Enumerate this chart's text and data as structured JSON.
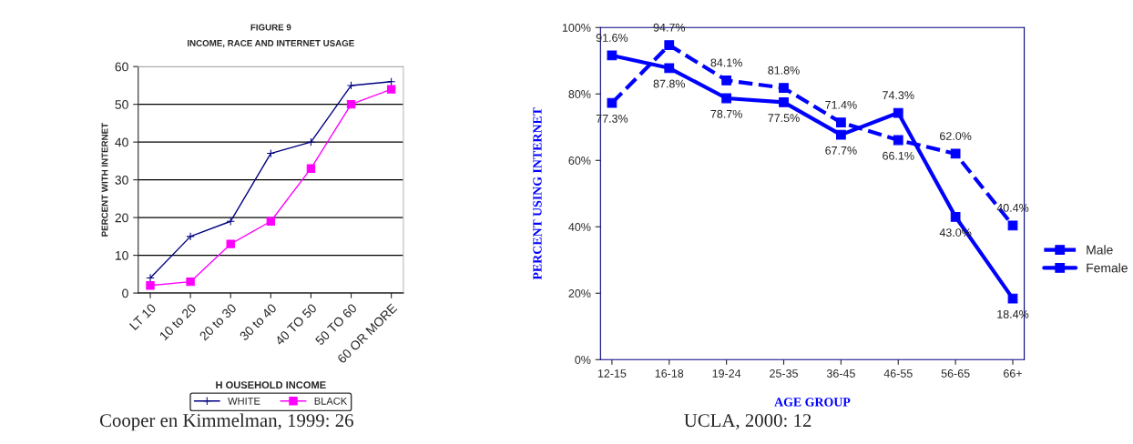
{
  "chart_data": [
    {
      "type": "line",
      "title": "FIGURE 9",
      "subtitle": "INCOME, RACE AND INTERNET USAGE",
      "xlabel": "H OUSEHOLD INCOME",
      "ylabel": "PERCENT WITH INTERNET",
      "categories": [
        "LT 10",
        "10 to 20",
        "20 to 30",
        "30 to 40",
        "40 TO 50",
        "50 TO 60",
        "60 OR MORE"
      ],
      "series": [
        {
          "name": "WHITE",
          "color": "#000080",
          "marker": "cross",
          "values": [
            4,
            15,
            19,
            37,
            40,
            55,
            56
          ]
        },
        {
          "name": "BLACK",
          "color": "#ff00ff",
          "marker": "square",
          "values": [
            2,
            3,
            13,
            19,
            33,
            50,
            54
          ]
        }
      ],
      "ylim": [
        0,
        60
      ],
      "yticks": [
        0,
        10,
        20,
        30,
        40,
        50,
        60
      ],
      "grid": "y",
      "legend": "bottom",
      "annotations": [
        "Cooper en Kimmelman, 1999: 26"
      ]
    },
    {
      "type": "line",
      "xlabel": "AGE GROUP",
      "ylabel": "PERCENT USING INTERNET",
      "categories": [
        "12-15",
        "16-18",
        "19-24",
        "25-35",
        "36-45",
        "46-55",
        "56-65",
        "66+"
      ],
      "series": [
        {
          "name": "Male",
          "color": "#0000ff",
          "marker": "square",
          "line_style": "dashed",
          "values": [
            77.3,
            94.7,
            84.1,
            81.8,
            71.4,
            66.1,
            62.0,
            40.4
          ],
          "value_labels": [
            "77.3%",
            "94.7%",
            "84.1%",
            "81.8%",
            "71.4%",
            "66.1%",
            "62.0%",
            "40.4%"
          ]
        },
        {
          "name": "Female",
          "color": "#0000ff",
          "marker": "square",
          "line_style": "solid",
          "values": [
            91.6,
            87.8,
            78.7,
            77.5,
            67.7,
            74.3,
            43.0,
            18.4
          ],
          "value_labels": [
            "91.6%",
            "87.8%",
            "78.7%",
            "77.5%",
            "67.7%",
            "74.3%",
            "43.0%",
            "18.4%"
          ]
        }
      ],
      "ylim": [
        0,
        100
      ],
      "yticks": [
        {
          "value": 0,
          "label": "0%"
        },
        {
          "value": 20,
          "label": "20%"
        },
        {
          "value": 40,
          "label": "40%"
        },
        {
          "value": 60,
          "label": "60%"
        },
        {
          "value": 80,
          "label": "80%"
        },
        {
          "value": 100,
          "label": "100%"
        }
      ],
      "grid": false,
      "legend": "right",
      "annotations": [
        "UCLA, 2000: 12"
      ]
    }
  ]
}
